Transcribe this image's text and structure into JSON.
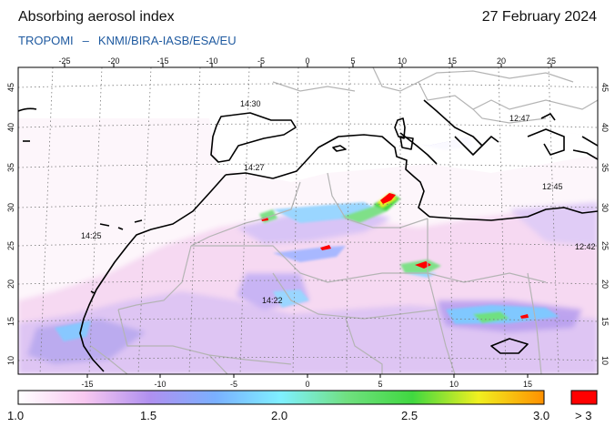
{
  "header": {
    "title": "Absorbing aerosol index",
    "date": "27 February 2024",
    "instrument": "TROPOMI",
    "separator": "–",
    "providers": "KNMI/BIRA-IASB/ESA/EU"
  },
  "map": {
    "top_lon_ticks": [
      "-25",
      "-20",
      "-15",
      "-10",
      "-5",
      "0",
      "5",
      "10",
      "15",
      "20",
      "25"
    ],
    "bottom_lon_ticks": [
      "-15",
      "-10",
      "-5",
      "0",
      "5",
      "10",
      "15"
    ],
    "lat_ticks": [
      "45",
      "40",
      "35",
      "30",
      "25",
      "20",
      "15",
      "10"
    ],
    "overpass_times": [
      "14:30",
      "14:27",
      "14:25",
      "14:22",
      "12:47",
      "12:45",
      "12:42"
    ],
    "colors": {
      "land_outline": "#000000",
      "border": "#b4b4b4",
      "grid": "#7a7a7a",
      "high_aerosol": "#ff0000"
    }
  },
  "colorbar": {
    "labels": [
      "1.0",
      "1.5",
      "2.0",
      "2.5",
      "3.0"
    ],
    "overflow_label": "> 3",
    "stops": [
      "#ffffff",
      "#f8c8f0",
      "#b090f0",
      "#7ab0ff",
      "#7ff0ff",
      "#70e080",
      "#40d840",
      "#f0f020",
      "#ff9000"
    ],
    "overflow_color": "#ff0000"
  }
}
